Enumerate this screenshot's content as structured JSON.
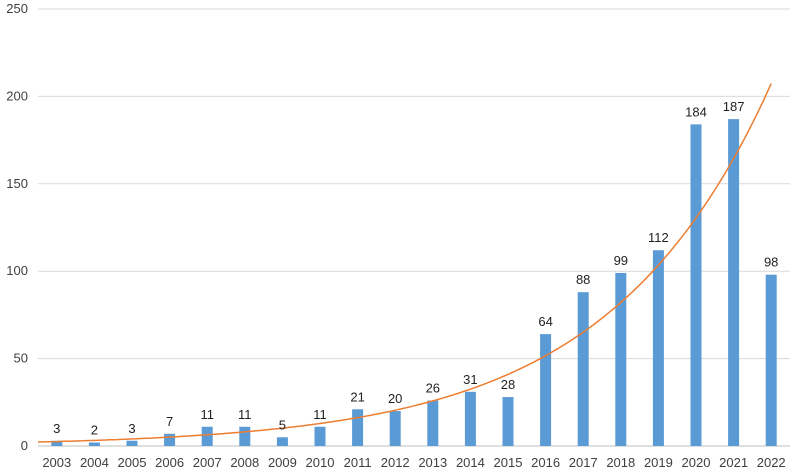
{
  "chart_data": {
    "type": "bar",
    "title": "",
    "xlabel": "",
    "ylabel": "",
    "categories": [
      "2003",
      "2004",
      "2005",
      "2006",
      "2007",
      "2008",
      "2009",
      "2010",
      "2011",
      "2012",
      "2013",
      "2014",
      "2015",
      "2016",
      "2017",
      "2018",
      "2019",
      "2020",
      "2021",
      "2022"
    ],
    "values": [
      3,
      2,
      3,
      7,
      11,
      11,
      5,
      11,
      21,
      20,
      26,
      31,
      28,
      64,
      88,
      99,
      112,
      184,
      187,
      98
    ],
    "ylim": [
      0,
      250
    ],
    "yticks": [
      0,
      50,
      100,
      150,
      200,
      250
    ],
    "grid": true,
    "data_labels": true,
    "trendline": {
      "type": "exponential",
      "color": "#ed7d31"
    },
    "bar_color": "#5b9bd5",
    "label_color": "#222222"
  }
}
